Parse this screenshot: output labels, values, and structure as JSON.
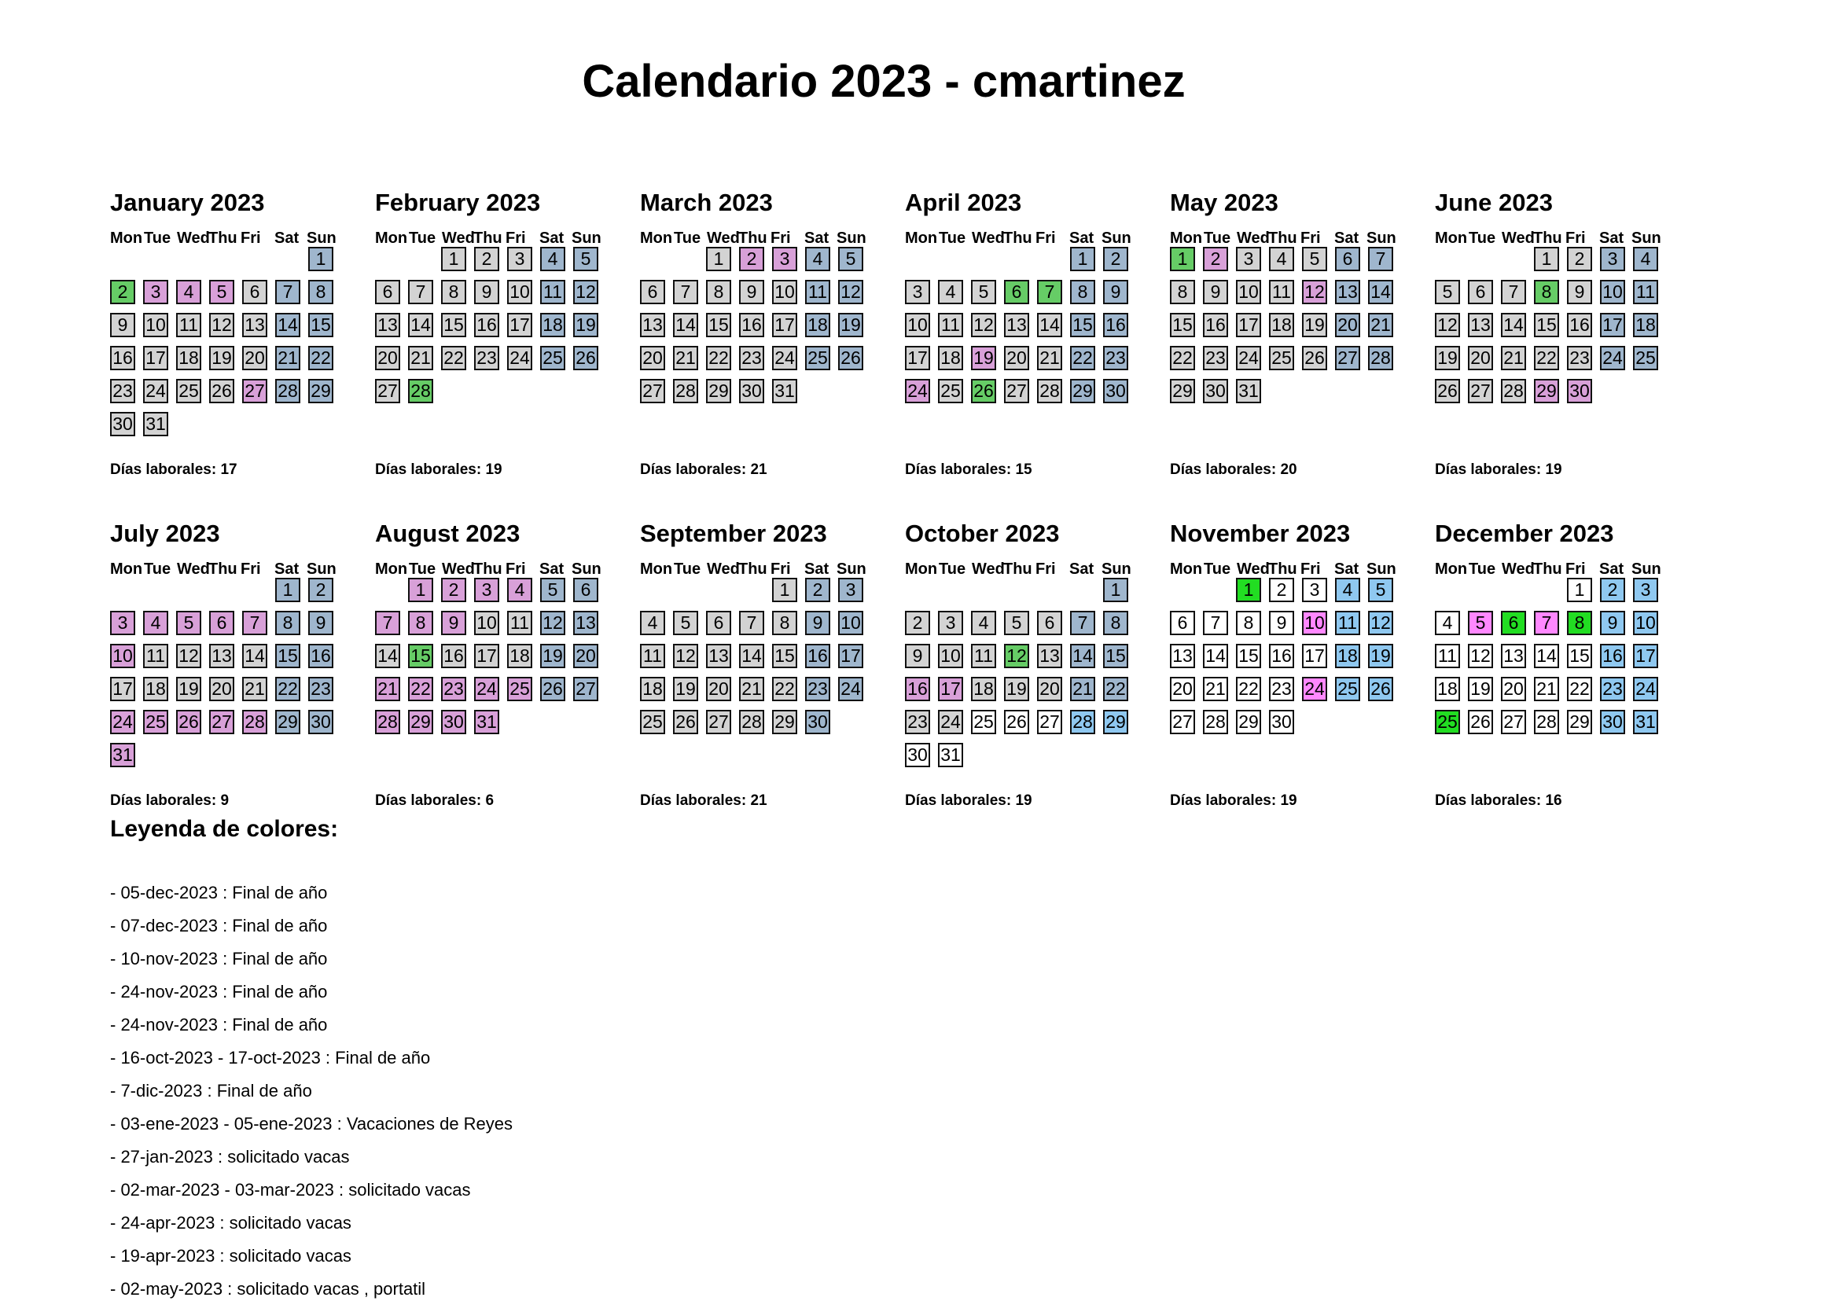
{
  "title": "Calendario 2023 - cmartinez",
  "weekday_labels": [
    "Mon",
    "Tue",
    "Wed",
    "Thu",
    "Fri",
    "Sat",
    "Sun"
  ],
  "worked_prefix": "Días laborales: ",
  "colors": {
    "workday": "#d3d3d3",
    "weekend": "#9fb6cd",
    "holiday": "#66cc66",
    "vacation": "#d8a0d8",
    "future": "#ffffff",
    "future_weekend": "#8fc8f0",
    "future_holiday": "#22dd22",
    "future_marked": "#ff88ff"
  },
  "months": [
    {
      "label": "January 2023",
      "year": 2023,
      "month": 1,
      "worked_days": "17",
      "marks": {
        "2": "holiday",
        "3": "vacation",
        "4": "vacation",
        "5": "vacation",
        "27": "vacation"
      }
    },
    {
      "label": "February 2023",
      "year": 2023,
      "month": 2,
      "worked_days": "19",
      "marks": {
        "28": "holiday"
      }
    },
    {
      "label": "March 2023",
      "year": 2023,
      "month": 3,
      "worked_days": "21",
      "marks": {
        "2": "vacation",
        "3": "vacation"
      }
    },
    {
      "label": "April 2023",
      "year": 2023,
      "month": 4,
      "worked_days": "15",
      "marks": {
        "6": "holiday",
        "7": "holiday",
        "19": "vacation",
        "24": "vacation",
        "26": "holiday"
      }
    },
    {
      "label": "May 2023",
      "year": 2023,
      "month": 5,
      "worked_days": "20",
      "marks": {
        "1": "holiday",
        "2": "vacation",
        "12": "vacation"
      }
    },
    {
      "label": "June 2023",
      "year": 2023,
      "month": 6,
      "worked_days": "19",
      "marks": {
        "8": "holiday",
        "29": "vacation",
        "30": "vacation"
      }
    },
    {
      "label": "July 2023",
      "year": 2023,
      "month": 7,
      "worked_days": "9",
      "marks": {
        "3": "vacation",
        "4": "vacation",
        "5": "vacation",
        "6": "vacation",
        "7": "vacation",
        "10": "vacation",
        "24": "vacation",
        "25": "vacation",
        "26": "vacation",
        "27": "vacation",
        "28": "vacation",
        "31": "vacation"
      }
    },
    {
      "label": "August 2023",
      "year": 2023,
      "month": 8,
      "worked_days": "6",
      "marks": {
        "1": "vacation",
        "2": "vacation",
        "3": "vacation",
        "4": "vacation",
        "7": "vacation",
        "8": "vacation",
        "9": "vacation",
        "15": "holiday",
        "21": "vacation",
        "22": "vacation",
        "23": "vacation",
        "24": "vacation",
        "25": "vacation",
        "28": "vacation",
        "29": "vacation",
        "30": "vacation",
        "31": "vacation"
      }
    },
    {
      "label": "September 2023",
      "year": 2023,
      "month": 9,
      "worked_days": "21",
      "marks": {}
    },
    {
      "label": "October 2023",
      "year": 2023,
      "month": 10,
      "worked_days": "19",
      "future_from": 25,
      "marks": {
        "12": "holiday",
        "16": "vacation",
        "17": "vacation"
      }
    },
    {
      "label": "November 2023",
      "year": 2023,
      "month": 11,
      "worked_days": "19",
      "future_from": 1,
      "marks": {
        "1": "future_holiday",
        "10": "future_marked",
        "24": "future_marked"
      }
    },
    {
      "label": "December 2023",
      "year": 2023,
      "month": 12,
      "worked_days": "16",
      "future_from": 1,
      "marks": {
        "5": "future_marked",
        "6": "future_holiday",
        "7": "future_marked",
        "8": "future_holiday",
        "25": "future_holiday"
      }
    }
  ],
  "legend": {
    "title": "Leyenda de colores:",
    "items": [
      "- 05-dec-2023 : Final de año",
      "- 07-dec-2023 : Final de año",
      "- 10-nov-2023 : Final de año",
      "- 24-nov-2023 : Final de año",
      "- 24-nov-2023 : Final de año",
      "- 16-oct-2023 - 17-oct-2023 : Final de año",
      "- 7-dic-2023 : Final de año",
      "- 03-ene-2023 - 05-ene-2023 : Vacaciones de Reyes",
      "- 27-jan-2023 : solicitado vacas",
      "- 02-mar-2023 - 03-mar-2023 : solicitado vacas",
      "- 24-apr-2023 : solicitado vacas",
      "- 19-apr-2023 : solicitado vacas",
      "- 02-may-2023 : solicitado vacas , portatil"
    ]
  }
}
